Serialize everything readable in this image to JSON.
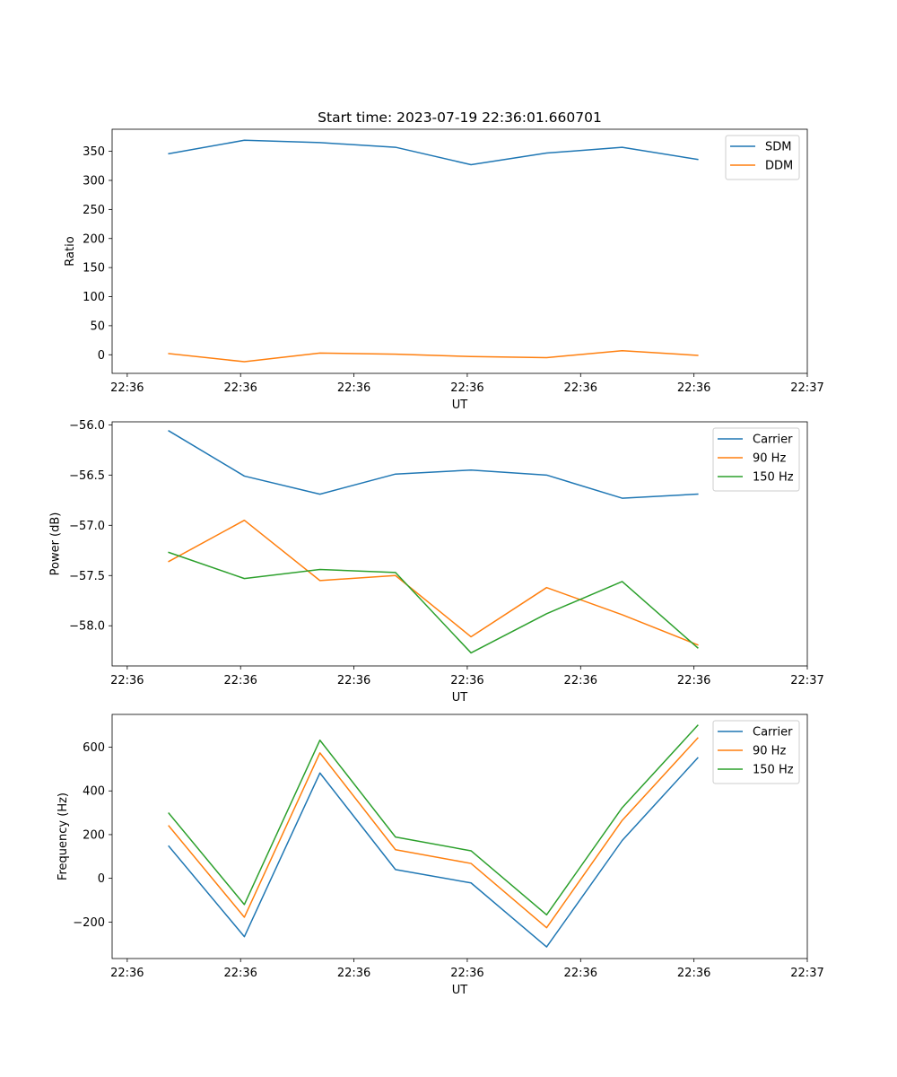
{
  "chart_data": [
    {
      "type": "line",
      "title": "Start time: 2023-07-19 22:36:01.660701",
      "xlabel": "UT",
      "ylabel": "Ratio",
      "xlim": [
        0,
        9.2
      ],
      "x": [
        0.75,
        1.75,
        2.75,
        3.75,
        4.75,
        5.75,
        6.75,
        7.75
      ],
      "xticks": [
        0.2,
        1.7,
        3.2,
        4.7,
        6.2,
        7.7,
        9.2
      ],
      "xtick_labels": [
        "22:36",
        "22:36",
        "22:36",
        "22:36",
        "22:36",
        "22:36",
        "22:37"
      ],
      "ylim": [
        -32,
        388
      ],
      "yticks": [
        0,
        50,
        100,
        150,
        200,
        250,
        300,
        350
      ],
      "ytick_labels": [
        "0",
        "50",
        "100",
        "150",
        "200",
        "250",
        "300",
        "350"
      ],
      "legend_position": "top-right",
      "series": [
        {
          "name": "SDM",
          "color": "#1f77b4",
          "values": [
            346,
            369,
            365,
            357,
            327,
            347,
            357,
            336
          ]
        },
        {
          "name": "DDM",
          "color": "#ff7f0e",
          "values": [
            2,
            -12,
            3,
            1,
            -3,
            -5,
            7,
            -1
          ]
        }
      ]
    },
    {
      "type": "line",
      "title": "",
      "xlabel": "UT",
      "ylabel": "Power (dB)",
      "xlim": [
        0,
        9.2
      ],
      "x": [
        0.75,
        1.75,
        2.75,
        3.75,
        4.75,
        5.75,
        6.75,
        7.75
      ],
      "xticks": [
        0.2,
        1.7,
        3.2,
        4.7,
        6.2,
        7.7,
        9.2
      ],
      "xtick_labels": [
        "22:36",
        "22:36",
        "22:36",
        "22:36",
        "22:36",
        "22:36",
        "22:37"
      ],
      "ylim": [
        -58.4,
        -55.97
      ],
      "yticks": [
        -58.0,
        -57.5,
        -57.0,
        -56.5,
        -56.0
      ],
      "ytick_labels": [
        "−58.0",
        "−57.5",
        "−57.0",
        "−56.5",
        "−56.0"
      ],
      "legend_position": "top-right",
      "series": [
        {
          "name": "Carrier",
          "color": "#1f77b4",
          "values": [
            -56.06,
            -56.51,
            -56.69,
            -56.49,
            -56.45,
            -56.5,
            -56.73,
            -56.69
          ]
        },
        {
          "name": "90 Hz",
          "color": "#ff7f0e",
          "values": [
            -57.36,
            -56.95,
            -57.55,
            -57.5,
            -58.11,
            -57.62,
            -57.89,
            -58.19
          ]
        },
        {
          "name": "150 Hz",
          "color": "#2ca02c",
          "values": [
            -57.27,
            -57.53,
            -57.44,
            -57.47,
            -58.27,
            -57.88,
            -57.56,
            -58.22
          ]
        }
      ]
    },
    {
      "type": "line",
      "title": "",
      "xlabel": "UT",
      "ylabel": "Frequency (Hz)",
      "xlim": [
        0,
        9.2
      ],
      "x": [
        0.75,
        1.75,
        2.75,
        3.75,
        4.75,
        5.75,
        6.75,
        7.75
      ],
      "xticks": [
        0.2,
        1.7,
        3.2,
        4.7,
        6.2,
        7.7,
        9.2
      ],
      "xtick_labels": [
        "22:36",
        "22:36",
        "22:36",
        "22:36",
        "22:36",
        "22:36",
        "22:37"
      ],
      "ylim": [
        -367,
        750
      ],
      "yticks": [
        -200,
        0,
        200,
        400,
        600
      ],
      "ytick_labels": [
        "−200",
        "0",
        "200",
        "400",
        "600"
      ],
      "legend_position": "top-right",
      "series": [
        {
          "name": "Carrier",
          "color": "#1f77b4",
          "values": [
            147,
            -267,
            482,
            40,
            -21,
            -314,
            173,
            551
          ]
        },
        {
          "name": "90 Hz",
          "color": "#ff7f0e",
          "values": [
            240,
            -178,
            574,
            131,
            68,
            -226,
            265,
            642
          ]
        },
        {
          "name": "150 Hz",
          "color": "#2ca02c",
          "values": [
            298,
            -120,
            632,
            189,
            126,
            -167,
            323,
            700
          ]
        }
      ]
    }
  ]
}
